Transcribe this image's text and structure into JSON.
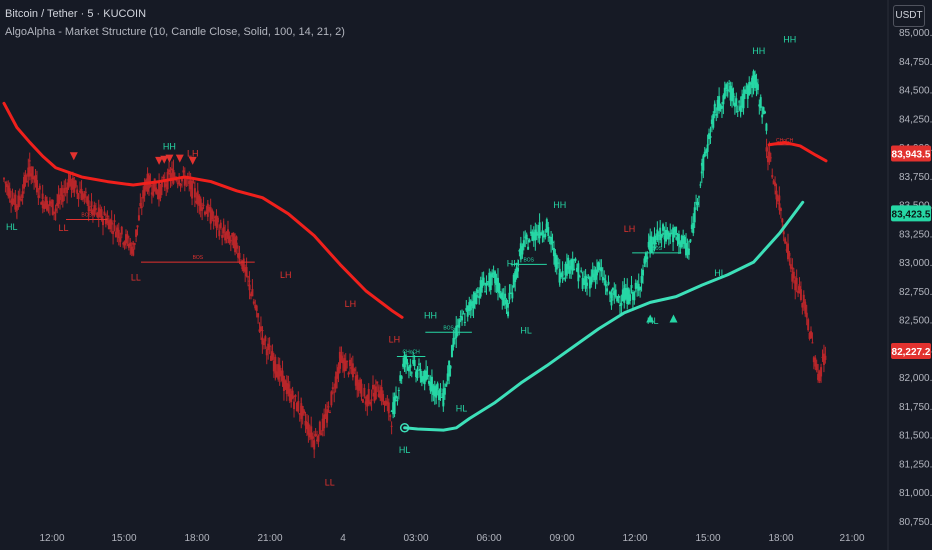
{
  "header": {
    "symbol_title": "Bitcoin / Tether · 5 · KUCOIN",
    "indicator": "AlgoAlpha - Market Structure (10, Candle Close, Solid, 100, 14, 21, 2)",
    "currency_button": "USDT"
  },
  "colors": {
    "background": "#161a25",
    "bull": "#26d7a5",
    "bear": "#e2322f",
    "bull_line": "#3de0b9",
    "bear_line": "#f0201c",
    "grid_text": "#b2b5be"
  },
  "chart_data": {
    "type": "candlestick",
    "ylim": [
      80750,
      85100
    ],
    "y_ticks": [
      "85,000.0",
      "84,750.0",
      "84,500.0",
      "84,250.0",
      "84,000.0",
      "83,750.0",
      "83,500.0",
      "83,250.0",
      "83,000.0",
      "82,750.0",
      "82,500.0",
      "82,250.0",
      "82,000.0",
      "81,750.0",
      "81,500.0",
      "81,250.0",
      "81,000.0",
      "80,750.0"
    ],
    "x_ticks": [
      "12:00",
      "15:00",
      "18:00",
      "21:00",
      "4",
      "03:00",
      "06:00",
      "09:00",
      "12:00",
      "15:00",
      "18:00",
      "21:00"
    ],
    "price_badges": [
      {
        "text": "83,943.5",
        "value": 83943.5,
        "color": "#e2322f"
      },
      {
        "text": "83,423.5",
        "value": 83423.5,
        "color": "#26d7a5"
      },
      {
        "text": "82,227.2",
        "value": 82227.2,
        "color": "#e2322f"
      }
    ],
    "bear_trend_line": [
      {
        "t": 0,
        "v": 84380
      },
      {
        "t": 0.5,
        "v": 84170
      },
      {
        "t": 1,
        "v": 84040
      },
      {
        "t": 1.5,
        "v": 83920
      },
      {
        "t": 2,
        "v": 83820
      },
      {
        "t": 3,
        "v": 83740
      },
      {
        "t": 4,
        "v": 83700
      },
      {
        "t": 5,
        "v": 83670
      },
      {
        "t": 6,
        "v": 83700
      },
      {
        "t": 7,
        "v": 83740
      },
      {
        "t": 8,
        "v": 83700
      },
      {
        "t": 9,
        "v": 83620
      },
      {
        "t": 10,
        "v": 83560
      },
      {
        "t": 11,
        "v": 83420
      },
      {
        "t": 12,
        "v": 83230
      },
      {
        "t": 13,
        "v": 82980
      },
      {
        "t": 14,
        "v": 82750
      },
      {
        "t": 15,
        "v": 82580
      },
      {
        "t": 15.4,
        "v": 82520
      }
    ],
    "bull_trend_line": [
      {
        "t": 15.5,
        "v": 81560
      },
      {
        "t": 16,
        "v": 81550
      },
      {
        "t": 17,
        "v": 81540
      },
      {
        "t": 17.5,
        "v": 81560
      },
      {
        "t": 18,
        "v": 81640
      },
      {
        "t": 19,
        "v": 81780
      },
      {
        "t": 20,
        "v": 81950
      },
      {
        "t": 21,
        "v": 82100
      },
      {
        "t": 22,
        "v": 82260
      },
      {
        "t": 23,
        "v": 82420
      },
      {
        "t": 24,
        "v": 82560
      },
      {
        "t": 25,
        "v": 82650
      },
      {
        "t": 26,
        "v": 82700
      },
      {
        "t": 27,
        "v": 82800
      },
      {
        "t": 28,
        "v": 82890
      },
      {
        "t": 29,
        "v": 83000
      },
      {
        "t": 30,
        "v": 83250
      },
      {
        "t": 30.9,
        "v": 83520
      }
    ],
    "bear_price_path": [
      {
        "t": 0,
        "v": 83720
      },
      {
        "t": 0.5,
        "v": 83480
      },
      {
        "t": 1,
        "v": 83820
      },
      {
        "t": 1.5,
        "v": 83540
      },
      {
        "t": 2,
        "v": 83460
      },
      {
        "t": 2.5,
        "v": 83700
      },
      {
        "t": 3,
        "v": 83600
      },
      {
        "t": 3.5,
        "v": 83420
      },
      {
        "t": 4,
        "v": 83380
      },
      {
        "t": 4.5,
        "v": 83250
      },
      {
        "t": 5,
        "v": 83120
      },
      {
        "t": 5.5,
        "v": 83700
      },
      {
        "t": 6,
        "v": 83620
      },
      {
        "t": 6.5,
        "v": 83760
      },
      {
        "t": 7,
        "v": 83720
      },
      {
        "t": 7.5,
        "v": 83560
      },
      {
        "t": 8,
        "v": 83400
      },
      {
        "t": 8.5,
        "v": 83250
      },
      {
        "t": 9,
        "v": 83150
      },
      {
        "t": 9.5,
        "v": 82800
      },
      {
        "t": 10,
        "v": 82350
      },
      {
        "t": 10.5,
        "v": 82100
      },
      {
        "t": 11,
        "v": 81880
      },
      {
        "t": 11.5,
        "v": 81700
      },
      {
        "t": 12,
        "v": 81450
      },
      {
        "t": 12.5,
        "v": 81650
      },
      {
        "t": 13,
        "v": 82150
      },
      {
        "t": 13.5,
        "v": 82050
      },
      {
        "t": 14,
        "v": 81800
      },
      {
        "t": 14.5,
        "v": 81900
      },
      {
        "t": 15,
        "v": 81650
      }
    ],
    "bull_price_path": [
      {
        "t": 15,
        "v": 81650
      },
      {
        "t": 15.5,
        "v": 82150
      },
      {
        "t": 16,
        "v": 82050
      },
      {
        "t": 16.5,
        "v": 81950
      },
      {
        "t": 17,
        "v": 81820
      },
      {
        "t": 17.5,
        "v": 82400
      },
      {
        "t": 18,
        "v": 82600
      },
      {
        "t": 18.5,
        "v": 82800
      },
      {
        "t": 19,
        "v": 82850
      },
      {
        "t": 19.5,
        "v": 82600
      },
      {
        "t": 20,
        "v": 83100
      },
      {
        "t": 20.5,
        "v": 83250
      },
      {
        "t": 21,
        "v": 83300
      },
      {
        "t": 21.5,
        "v": 82900
      },
      {
        "t": 22,
        "v": 83000
      },
      {
        "t": 22.5,
        "v": 82800
      },
      {
        "t": 23,
        "v": 82950
      },
      {
        "t": 23.5,
        "v": 82700
      },
      {
        "t": 24,
        "v": 82700
      },
      {
        "t": 24.5,
        "v": 82750
      },
      {
        "t": 25,
        "v": 83150
      },
      {
        "t": 25.5,
        "v": 83250
      },
      {
        "t": 26,
        "v": 83230
      },
      {
        "t": 26.5,
        "v": 83100
      },
      {
        "t": 27,
        "v": 83800
      },
      {
        "t": 27.5,
        "v": 84300
      },
      {
        "t": 28,
        "v": 84500
      },
      {
        "t": 28.5,
        "v": 84350
      },
      {
        "t": 29,
        "v": 84600
      },
      {
        "t": 29.5,
        "v": 84200
      }
    ],
    "bear_drop_path": [
      {
        "t": 29.5,
        "v": 84000
      },
      {
        "t": 30,
        "v": 83500
      },
      {
        "t": 30.5,
        "v": 82900
      },
      {
        "t": 31,
        "v": 82600
      },
      {
        "t": 31.5,
        "v": 82000
      },
      {
        "t": 31.8,
        "v": 82220
      }
    ],
    "structure_labels": [
      {
        "text": "HL",
        "t": 0.3,
        "v": 83280,
        "dir": "bull"
      },
      {
        "text": "LL",
        "t": 2.3,
        "v": 83270,
        "dir": "bear"
      },
      {
        "text": "LL",
        "t": 5.1,
        "v": 82840,
        "dir": "bear"
      },
      {
        "text": "HH",
        "t": 6.4,
        "v": 83980,
        "dir": "bull"
      },
      {
        "text": "LH",
        "t": 7.3,
        "v": 83920,
        "dir": "bear"
      },
      {
        "text": "LH",
        "t": 10.9,
        "v": 82860,
        "dir": "bear"
      },
      {
        "text": "LH",
        "t": 13.4,
        "v": 82610,
        "dir": "bear"
      },
      {
        "text": "LL",
        "t": 12.6,
        "v": 81060,
        "dir": "bear"
      },
      {
        "text": "LH",
        "t": 15.1,
        "v": 82300,
        "dir": "bear"
      },
      {
        "text": "HL",
        "t": 15.5,
        "v": 81340,
        "dir": "bull"
      },
      {
        "text": "HH",
        "t": 16.5,
        "v": 82510,
        "dir": "bull"
      },
      {
        "text": "HL",
        "t": 17.7,
        "v": 81700,
        "dir": "bull"
      },
      {
        "text": "HH",
        "t": 19.7,
        "v": 82960,
        "dir": "bull"
      },
      {
        "text": "HL",
        "t": 20.2,
        "v": 82380,
        "dir": "bull"
      },
      {
        "text": "HH",
        "t": 21.5,
        "v": 83470,
        "dir": "bull"
      },
      {
        "text": "LH",
        "t": 24.2,
        "v": 83260,
        "dir": "bear"
      },
      {
        "text": "HL",
        "t": 25.1,
        "v": 82460,
        "dir": "bull"
      },
      {
        "text": "HL",
        "t": 27.7,
        "v": 82880,
        "dir": "bull"
      },
      {
        "text": "HH",
        "t": 29.2,
        "v": 84810,
        "dir": "bull"
      },
      {
        "text": "HH",
        "t": 30.4,
        "v": 84910,
        "dir": "bull"
      }
    ],
    "bos_lines": [
      {
        "text": "BOS",
        "t1": 2.4,
        "t2": 4.0,
        "v": 83370,
        "dir": "bear"
      },
      {
        "text": "BOS",
        "t1": 5.3,
        "t2": 9.7,
        "v": 83000,
        "dir": "bear"
      },
      {
        "text": "CHoCH",
        "t1": 15.2,
        "t2": 16.3,
        "v": 82180,
        "dir": "bull"
      },
      {
        "text": "BOS",
        "t1": 16.3,
        "t2": 18.1,
        "v": 82390,
        "dir": "bull"
      },
      {
        "text": "BOS",
        "t1": 19.6,
        "t2": 21.0,
        "v": 82980,
        "dir": "bull"
      },
      {
        "text": "BOS",
        "t1": 24.3,
        "t2": 26.2,
        "v": 83080,
        "dir": "bull"
      },
      {
        "text": "CHoCH",
        "t1": 29.7,
        "t2": 30.7,
        "v": 84020,
        "dir": "bear"
      }
    ],
    "signal_arrows": [
      {
        "t": 2.7,
        "v": 83920,
        "dir": "down"
      },
      {
        "t": 6.0,
        "v": 83880,
        "dir": "down"
      },
      {
        "t": 6.2,
        "v": 83890,
        "dir": "down"
      },
      {
        "t": 6.4,
        "v": 83900,
        "dir": "down"
      },
      {
        "t": 6.8,
        "v": 83900,
        "dir": "down"
      },
      {
        "t": 7.3,
        "v": 83880,
        "dir": "down"
      },
      {
        "t": 25.0,
        "v": 82510,
        "dir": "up"
      },
      {
        "t": 25.9,
        "v": 82510,
        "dir": "up"
      }
    ]
  }
}
